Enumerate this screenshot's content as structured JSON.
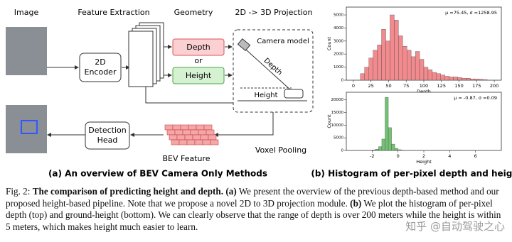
{
  "diagram": {
    "column_headers": [
      "Image",
      "Feature Extraction",
      "Geometry",
      "2D -> 3D Projection"
    ],
    "encoder": [
      "2D",
      "Encoder"
    ],
    "depth": "Depth",
    "or": "or",
    "height": "Height",
    "camera_model": "Camera model",
    "camera_depth": "Depth",
    "camera_height": "Height",
    "detection_head": [
      "Detection",
      "Head"
    ],
    "bev_feature": "BEV Feature",
    "voxel_pooling": "Voxel Pooling",
    "caption_a": "(a) An overview of BEV Camera Only Methods",
    "caption_b": "(b) Histogram of per-pixel depth and height"
  },
  "chart_data": [
    {
      "type": "histogram",
      "annotation": "μ =75.45, σ =1258.95",
      "xlabel": "Depth",
      "ylabel": "Count",
      "color": "#f0757a",
      "bins": [
        10,
        16,
        22,
        28,
        34,
        40,
        46,
        52,
        58,
        64,
        70,
        76,
        82,
        88,
        94,
        100,
        106,
        112,
        118,
        124,
        130,
        136,
        142,
        148,
        154,
        160,
        166,
        172,
        178,
        184,
        190
      ],
      "counts": [
        500,
        1000,
        1700,
        2300,
        2700,
        3900,
        3000,
        5000,
        4600,
        3400,
        2600,
        2300,
        1800,
        2200,
        1600,
        1000,
        800,
        600,
        500,
        400,
        300,
        250,
        250,
        200,
        150,
        150,
        100,
        100,
        80,
        50
      ],
      "xlim": [
        -10,
        210
      ],
      "ylim": [
        0,
        5600
      ],
      "xticks": [
        0,
        25,
        50,
        75,
        100,
        125,
        150,
        175,
        200
      ],
      "yticks": [
        0,
        1000,
        2000,
        3000,
        4000,
        5000
      ]
    },
    {
      "type": "histogram",
      "annotation": "μ = -0.87, σ =0.09",
      "xlabel": "Height",
      "ylabel": "Count",
      "color": "#5cb85c",
      "bins": [
        -2,
        -1.75,
        -1.5,
        -1.25,
        -1,
        -0.75,
        -0.5,
        -0.25,
        0,
        0.25,
        0.5
      ],
      "counts": [
        200,
        500,
        1500,
        4500,
        21000,
        9000,
        2500,
        800,
        300,
        100
      ],
      "xlim": [
        -4,
        8
      ],
      "ylim": [
        0,
        23000
      ],
      "xticks": [
        -2,
        0,
        2,
        4,
        6
      ],
      "yticks": [
        0,
        5000,
        10000,
        15000,
        20000
      ]
    }
  ],
  "caption": [
    {
      "text": "Fig. 2: ",
      "bold": false
    },
    {
      "text": "The comparison of predicting height and depth. (a)",
      "bold": true
    },
    {
      "text": " We present the overview of the previous depth-based method and our proposed height-based pipeline. Note that we propose a novel 2D to 3D projection module. ",
      "bold": false
    },
    {
      "text": "(b)",
      "bold": true
    },
    {
      "text": " We plot the histogram of per-pixel depth (top) and ground-height (bottom). We can clearly observe that the range of depth is over 200 meters while the height is within 5 meters, which makes height much easier to learn.",
      "bold": false
    }
  ],
  "watermark": "知乎 @自动驾驶之心"
}
